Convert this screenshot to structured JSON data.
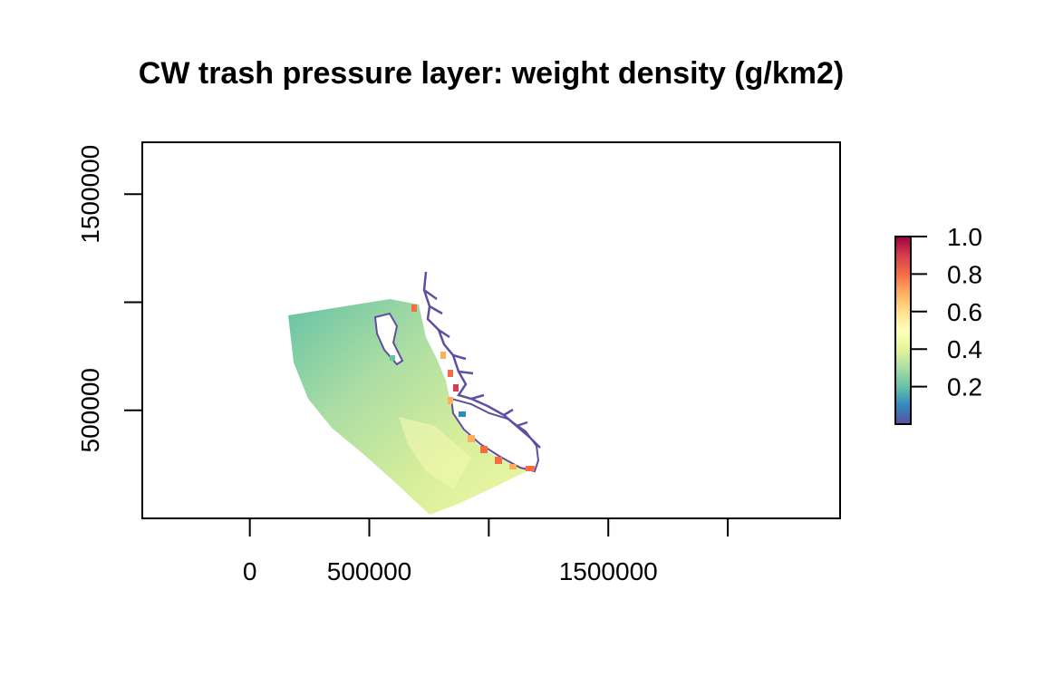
{
  "title": "CW trash pressure layer: weight density (g/km2)",
  "x_axis": {
    "ticks": [
      0,
      500000,
      1000000,
      1500000,
      2000000
    ],
    "labels": [
      "0",
      "500000",
      "",
      "1500000",
      ""
    ],
    "range": [
      -450000,
      2470000
    ]
  },
  "y_axis": {
    "ticks": [
      500000,
      1000000,
      1500000
    ],
    "labels": [
      "500000",
      "",
      "1500000"
    ],
    "range": [
      0,
      1740000
    ]
  },
  "legend": {
    "ticks": [
      "0.2",
      "0.4",
      "0.6",
      "0.8",
      "1.0"
    ],
    "placement": "right",
    "range": [
      0,
      1
    ]
  },
  "colors": {
    "palette": [
      "#5E4FA2",
      "#3288BD",
      "#66C2A5",
      "#ABDDA4",
      "#E6F598",
      "#FFFFBF",
      "#FEE08B",
      "#FDAE61",
      "#F46D43",
      "#D53E4F",
      "#9E0142"
    ],
    "coastline": "#5E4FA2"
  },
  "map": {
    "variable": "weight density (g/km2)",
    "offshore_value_range": [
      0.25,
      0.55
    ],
    "nearshore_hotspot_value": 0.8
  }
}
